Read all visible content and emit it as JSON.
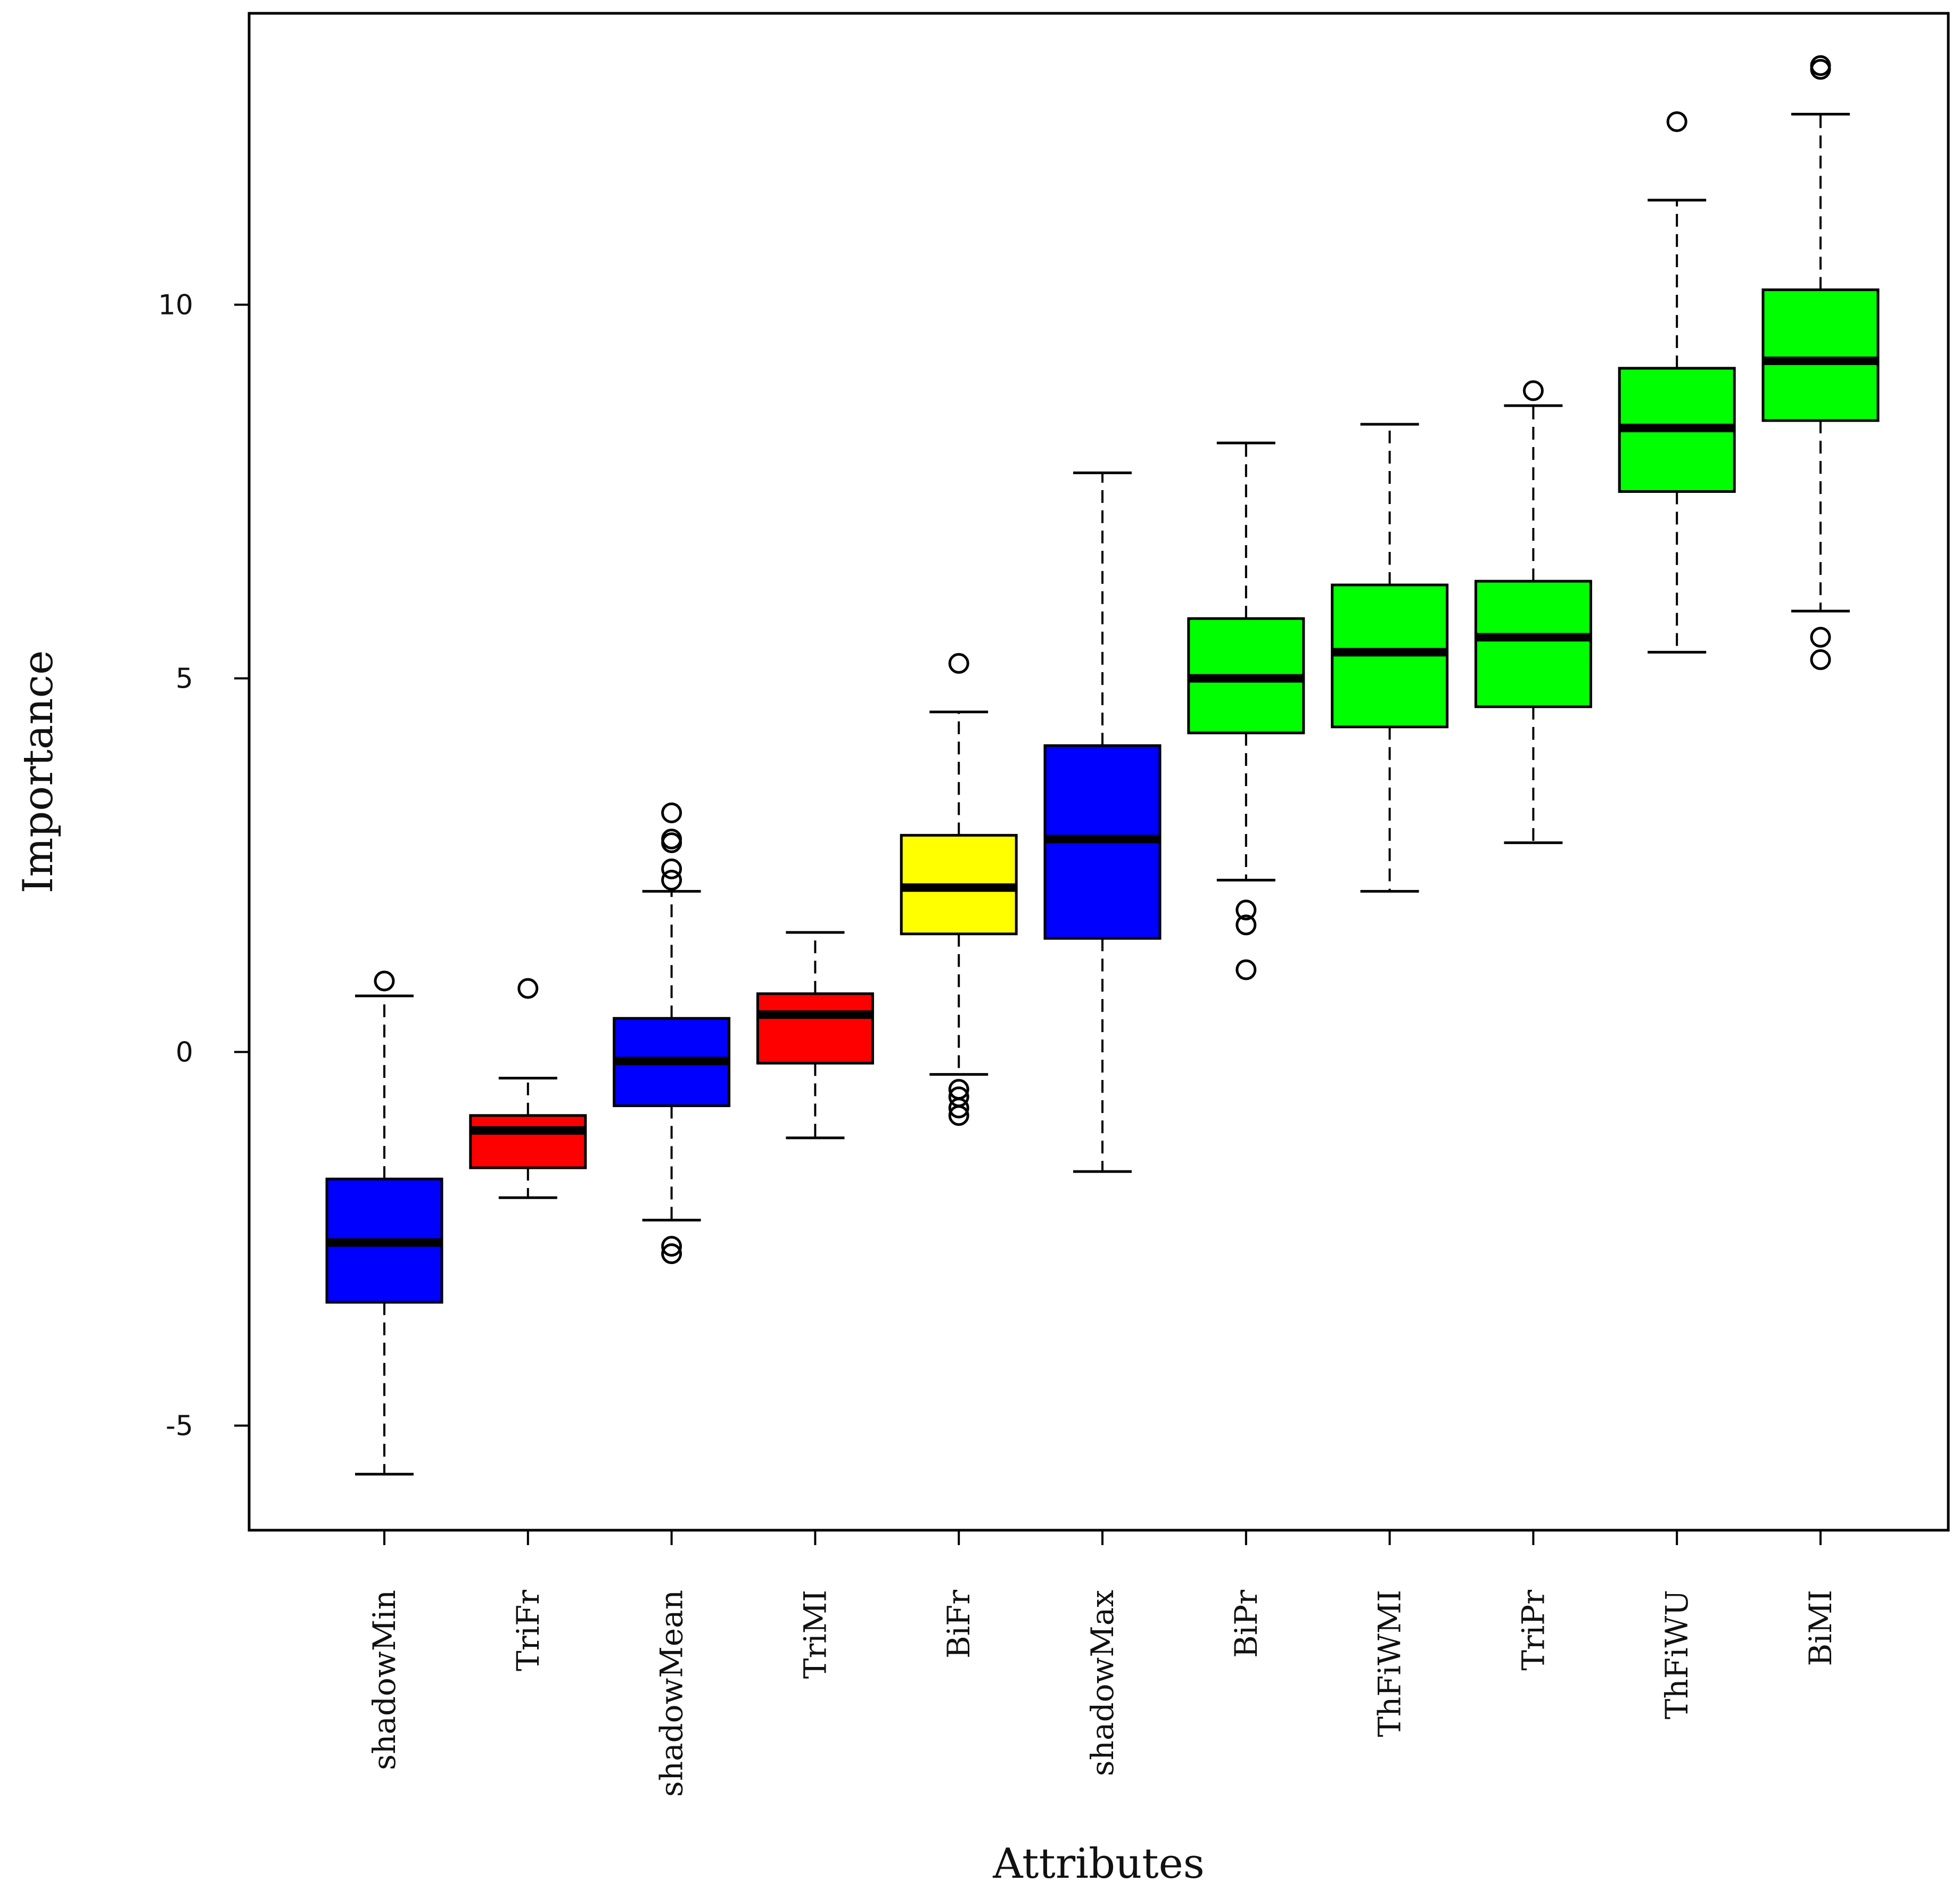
{
  "chart_data": {
    "type": "boxplot",
    "title": "",
    "xlabel": "Attributes",
    "ylabel": "Importance",
    "ylim": [
      -6.4,
      13.9
    ],
    "yticks": [
      -5,
      0,
      5,
      10
    ],
    "ytick_labels": [
      "-5",
      "0",
      "5",
      "10"
    ],
    "categories": [
      "shadowMin",
      "TriFr",
      "shadowMean",
      "TriMI",
      "BiFr",
      "shadowMax",
      "BiPr",
      "ThFiWMI",
      "TriPr",
      "ThFiWU",
      "BiMI"
    ],
    "boxes": [
      {
        "name": "shadowMin",
        "color": "#0000ff",
        "whisker_low": -5.65,
        "q1": -3.35,
        "median": -2.55,
        "q3": -1.7,
        "whisker_high": 0.75,
        "outliers": [
          0.95
        ]
      },
      {
        "name": "TriFr",
        "color": "#ff0000",
        "whisker_low": -1.95,
        "q1": -1.55,
        "median": -1.05,
        "q3": -0.85,
        "whisker_high": -0.35,
        "outliers": [
          0.85
        ]
      },
      {
        "name": "shadowMean",
        "color": "#0000ff",
        "whisker_low": -2.25,
        "q1": -0.72,
        "median": -0.12,
        "q3": 0.45,
        "whisker_high": 2.15,
        "outliers": [
          3.2,
          2.85,
          2.8,
          2.45,
          2.3,
          -2.6,
          -2.7
        ]
      },
      {
        "name": "TriMI",
        "color": "#ff0000",
        "whisker_low": -1.15,
        "q1": -0.15,
        "median": 0.5,
        "q3": 0.78,
        "whisker_high": 1.6,
        "outliers": []
      },
      {
        "name": "BiFr",
        "color": "#ffff00",
        "whisker_low": -0.3,
        "q1": 1.58,
        "median": 2.2,
        "q3": 2.9,
        "whisker_high": 4.55,
        "outliers": [
          5.2,
          -0.5,
          -0.6,
          -0.75,
          -0.85
        ]
      },
      {
        "name": "shadowMax",
        "color": "#0000ff",
        "whisker_low": -1.6,
        "q1": 1.52,
        "median": 2.85,
        "q3": 4.1,
        "whisker_high": 7.75,
        "outliers": []
      },
      {
        "name": "BiPr",
        "color": "#00ff00",
        "whisker_low": 2.3,
        "q1": 4.27,
        "median": 5.0,
        "q3": 5.8,
        "whisker_high": 8.15,
        "outliers": [
          1.9,
          1.7,
          1.1
        ]
      },
      {
        "name": "ThFiWMI",
        "color": "#00ff00",
        "whisker_low": 2.15,
        "q1": 4.35,
        "median": 5.35,
        "q3": 6.25,
        "whisker_high": 8.4,
        "outliers": []
      },
      {
        "name": "TriPr",
        "color": "#00ff00",
        "whisker_low": 2.8,
        "q1": 4.62,
        "median": 5.55,
        "q3": 6.3,
        "whisker_high": 8.65,
        "outliers": [
          8.85
        ]
      },
      {
        "name": "ThFiWU",
        "color": "#00ff00",
        "whisker_low": 5.35,
        "q1": 7.5,
        "median": 8.35,
        "q3": 9.15,
        "whisker_high": 11.4,
        "outliers": [
          12.45
        ]
      },
      {
        "name": "BiMI",
        "color": "#00ff00",
        "whisker_low": 5.9,
        "q1": 8.45,
        "median": 9.25,
        "q3": 10.2,
        "whisker_high": 12.55,
        "outliers": [
          13.2,
          13.15,
          5.55,
          5.25
        ]
      }
    ],
    "grid": false,
    "legend": "none"
  }
}
